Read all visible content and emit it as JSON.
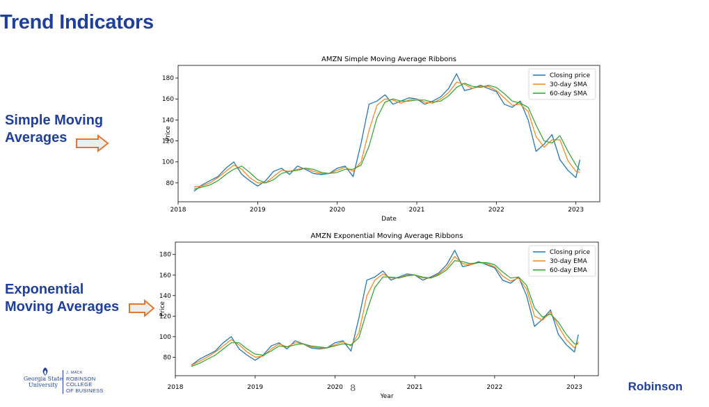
{
  "slide": {
    "title": "Trend Indicators",
    "label_sma": [
      "Simple Moving",
      "Averages"
    ],
    "label_ema": [
      "Exponential",
      "Moving Averages"
    ],
    "page_number": "8",
    "logo_gsu": [
      "Georgia State",
      "University"
    ],
    "logo_college": [
      "J. MACK",
      "ROBINSON",
      "COLLEGE",
      "OF BUSINESS"
    ],
    "logo_right": "Robinson"
  },
  "colors": {
    "title_blue": "#1f3f9c",
    "closing": "#1f77b4",
    "ma30": "#ff7f0e",
    "ma60": "#2ca02c",
    "arrow_stroke": "#e6742a",
    "arrow_fill": "#eeeeee"
  },
  "chart_data": [
    {
      "type": "line",
      "title": "AMZN Simple Moving Average Ribbons",
      "xlabel": "Date",
      "ylabel": "Price",
      "xlim": [
        2018.0,
        2023.3
      ],
      "ylim": [
        62,
        192
      ],
      "x_ticks": [
        2018,
        2019,
        2020,
        2021,
        2022,
        2023
      ],
      "y_ticks": [
        80,
        100,
        120,
        140,
        160,
        180
      ],
      "legend_position": "top-right",
      "grid": false,
      "x": [
        2018.2,
        2018.3,
        2018.4,
        2018.5,
        2018.6,
        2018.7,
        2018.8,
        2018.9,
        2019.0,
        2019.1,
        2019.2,
        2019.3,
        2019.4,
        2019.5,
        2019.6,
        2019.7,
        2019.8,
        2019.9,
        2020.0,
        2020.1,
        2020.2,
        2020.3,
        2020.4,
        2020.5,
        2020.6,
        2020.7,
        2020.8,
        2020.9,
        2021.0,
        2021.1,
        2021.2,
        2021.3,
        2021.4,
        2021.5,
        2021.6,
        2021.7,
        2021.8,
        2021.9,
        2022.0,
        2022.1,
        2022.2,
        2022.3,
        2022.4,
        2022.5,
        2022.6,
        2022.7,
        2022.8,
        2022.9,
        2023.0,
        2023.05
      ],
      "series": [
        {
          "name": "Closing price",
          "values": [
            72,
            78,
            82,
            86,
            94,
            100,
            88,
            82,
            77,
            82,
            91,
            94,
            88,
            96,
            93,
            89,
            88,
            89,
            94,
            96,
            86,
            118,
            155,
            158,
            164,
            155,
            158,
            161,
            160,
            155,
            158,
            162,
            170,
            184,
            168,
            170,
            173,
            170,
            167,
            155,
            152,
            158,
            140,
            110,
            117,
            126,
            102,
            92,
            85,
            102
          ]
        },
        {
          "name": "30-day SMA",
          "values": [
            76,
            77,
            80,
            85,
            91,
            97,
            93,
            85,
            80,
            80,
            86,
            92,
            91,
            93,
            94,
            91,
            89,
            89,
            92,
            95,
            91,
            100,
            130,
            154,
            160,
            159,
            156,
            159,
            160,
            157,
            156,
            160,
            166,
            176,
            174,
            170,
            172,
            172,
            168,
            161,
            154,
            155,
            148,
            124,
            114,
            121,
            121,
            101,
            91,
            90
          ]
        },
        {
          "name": "60-day SMA",
          "values": [
            74,
            76,
            78,
            82,
            88,
            93,
            96,
            90,
            83,
            80,
            83,
            89,
            91,
            92,
            94,
            93,
            90,
            89,
            90,
            93,
            93,
            97,
            115,
            142,
            157,
            160,
            158,
            158,
            159,
            159,
            157,
            158,
            163,
            171,
            175,
            172,
            171,
            173,
            171,
            165,
            158,
            156,
            152,
            135,
            120,
            118,
            125,
            110,
            97,
            92
          ]
        }
      ]
    },
    {
      "type": "line",
      "title": "AMZN Exponential Moving Average Ribbons",
      "xlabel": "Year",
      "ylabel": "Price",
      "xlim": [
        2018.0,
        2023.3
      ],
      "ylim": [
        62,
        192
      ],
      "x_ticks": [
        2018,
        2019,
        2020,
        2021,
        2022,
        2023
      ],
      "y_ticks": [
        80,
        100,
        120,
        140,
        160,
        180
      ],
      "legend_position": "top-right",
      "grid": false,
      "x": [
        2018.2,
        2018.3,
        2018.4,
        2018.5,
        2018.6,
        2018.7,
        2018.8,
        2018.9,
        2019.0,
        2019.1,
        2019.2,
        2019.3,
        2019.4,
        2019.5,
        2019.6,
        2019.7,
        2019.8,
        2019.9,
        2020.0,
        2020.1,
        2020.2,
        2020.3,
        2020.4,
        2020.5,
        2020.6,
        2020.7,
        2020.8,
        2020.9,
        2021.0,
        2021.1,
        2021.2,
        2021.3,
        2021.4,
        2021.5,
        2021.6,
        2021.7,
        2021.8,
        2021.9,
        2022.0,
        2022.1,
        2022.2,
        2022.3,
        2022.4,
        2022.5,
        2022.6,
        2022.7,
        2022.8,
        2022.9,
        2023.0,
        2023.05
      ],
      "series": [
        {
          "name": "Closing price",
          "values": [
            72,
            78,
            82,
            86,
            94,
            100,
            88,
            82,
            77,
            82,
            91,
            94,
            88,
            96,
            93,
            89,
            88,
            89,
            94,
            96,
            86,
            118,
            155,
            158,
            164,
            155,
            158,
            161,
            160,
            155,
            158,
            162,
            170,
            184,
            168,
            170,
            173,
            170,
            167,
            155,
            152,
            158,
            140,
            110,
            117,
            126,
            102,
            92,
            85,
            102
          ]
        },
        {
          "name": "30-day EMA",
          "values": [
            72,
            76,
            80,
            85,
            91,
            97,
            92,
            85,
            80,
            81,
            88,
            93,
            90,
            94,
            93,
            90,
            89,
            89,
            92,
            95,
            91,
            104,
            140,
            155,
            161,
            157,
            157,
            160,
            160,
            157,
            157,
            161,
            167,
            178,
            171,
            170,
            172,
            171,
            168,
            159,
            154,
            157,
            146,
            120,
            116,
            124,
            110,
            97,
            89,
            95
          ]
        },
        {
          "name": "60-day EMA",
          "values": [
            71,
            74,
            78,
            82,
            88,
            94,
            94,
            88,
            83,
            82,
            86,
            91,
            90,
            92,
            93,
            91,
            90,
            89,
            91,
            93,
            92,
            99,
            125,
            148,
            158,
            158,
            157,
            159,
            160,
            158,
            157,
            160,
            165,
            174,
            173,
            171,
            172,
            172,
            170,
            163,
            157,
            158,
            150,
            128,
            119,
            122,
            114,
            102,
            93,
            93
          ]
        }
      ]
    }
  ]
}
